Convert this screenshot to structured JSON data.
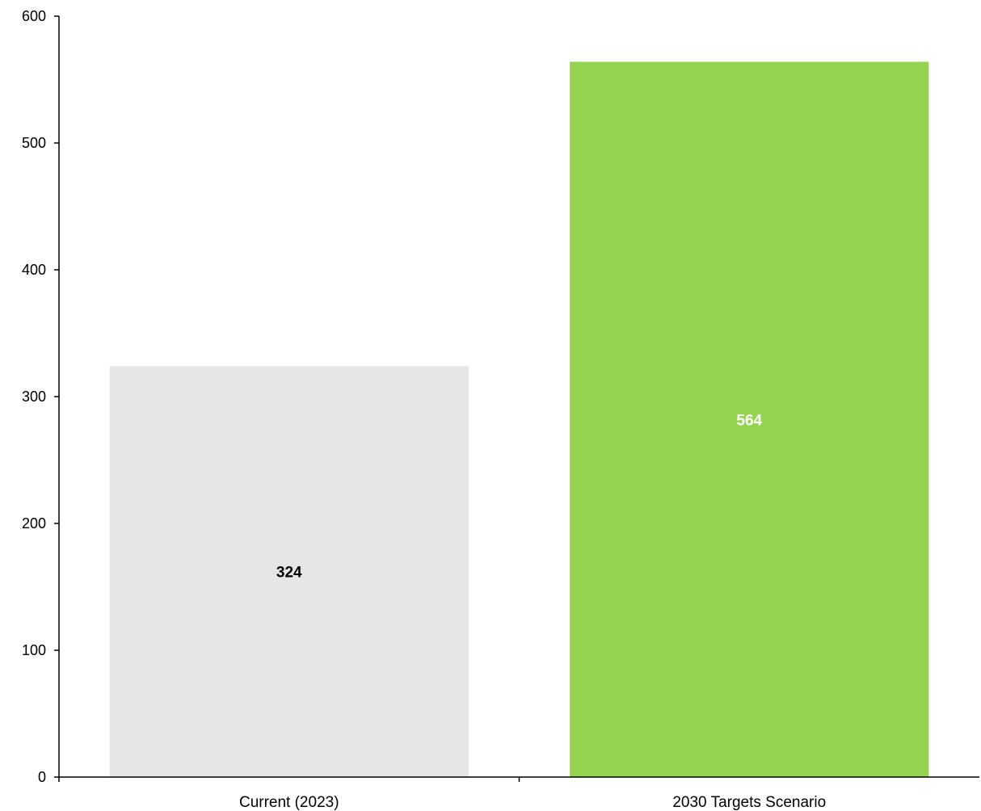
{
  "chart_data": {
    "type": "bar",
    "categories": [
      "Current (2023)",
      "2030 Targets Scenario"
    ],
    "values": [
      324,
      564
    ],
    "data_labels": [
      "324",
      "564"
    ],
    "ylim": [
      0,
      600
    ],
    "yticks": [
      0,
      100,
      200,
      300,
      400,
      500,
      600
    ],
    "ytick_labels": [
      "0",
      "100",
      "200",
      "300",
      "400",
      "500",
      "600"
    ],
    "grid": false,
    "legend": "none",
    "colors": {
      "bars": [
        "#e6e6e6",
        "#95d451"
      ],
      "data_labels": [
        "#000000",
        "#ffffff"
      ],
      "axis": "#000000"
    }
  }
}
